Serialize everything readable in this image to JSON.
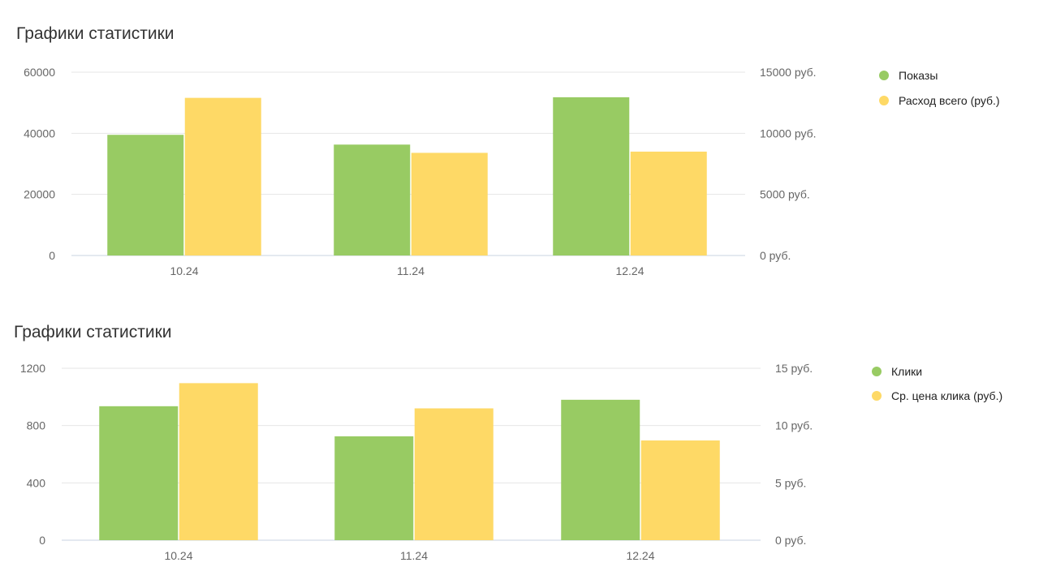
{
  "chart_data": [
    {
      "type": "bar",
      "title": "Графики статистики",
      "categories": [
        "10.24",
        "11.24",
        "12.24"
      ],
      "series": [
        {
          "name": "Показы",
          "axis": "left",
          "color": "#98cb63",
          "values": [
            39500,
            36300,
            51800
          ]
        },
        {
          "name": "Расход всего (руб.)",
          "axis": "right",
          "color": "#fed966",
          "values": [
            12900,
            8400,
            8500
          ]
        }
      ],
      "y_left": {
        "ticks": [
          0,
          20000,
          40000,
          60000
        ],
        "tick_labels": [
          "0",
          "20000",
          "40000",
          "60000"
        ],
        "ylim": [
          0,
          60000
        ]
      },
      "y_right": {
        "ticks": [
          0,
          5000,
          10000,
          15000
        ],
        "tick_labels": [
          "0 руб.",
          "5000 руб.",
          "10000 руб.",
          "15000 руб."
        ],
        "ylim": [
          0,
          15000
        ]
      },
      "grid": true,
      "legend_position": "right"
    },
    {
      "type": "bar",
      "title": "Графики статистики",
      "categories": [
        "10.24",
        "11.24",
        "12.24"
      ],
      "series": [
        {
          "name": "Клики",
          "axis": "left",
          "color": "#98cb63",
          "values": [
            935,
            725,
            980
          ]
        },
        {
          "name": "Ср. цена клика (руб.)",
          "axis": "right",
          "color": "#fed966",
          "values": [
            13.7,
            11.5,
            8.7
          ]
        }
      ],
      "y_left": {
        "ticks": [
          0,
          400,
          800,
          1200
        ],
        "tick_labels": [
          "0",
          "400",
          "800",
          "1200"
        ],
        "ylim": [
          0,
          1200
        ]
      },
      "y_right": {
        "ticks": [
          0,
          5,
          10,
          15
        ],
        "tick_labels": [
          "0 руб.",
          "5 руб.",
          "10 руб.",
          "15 руб."
        ],
        "ylim": [
          0,
          15
        ]
      },
      "grid": true,
      "legend_position": "right"
    }
  ]
}
